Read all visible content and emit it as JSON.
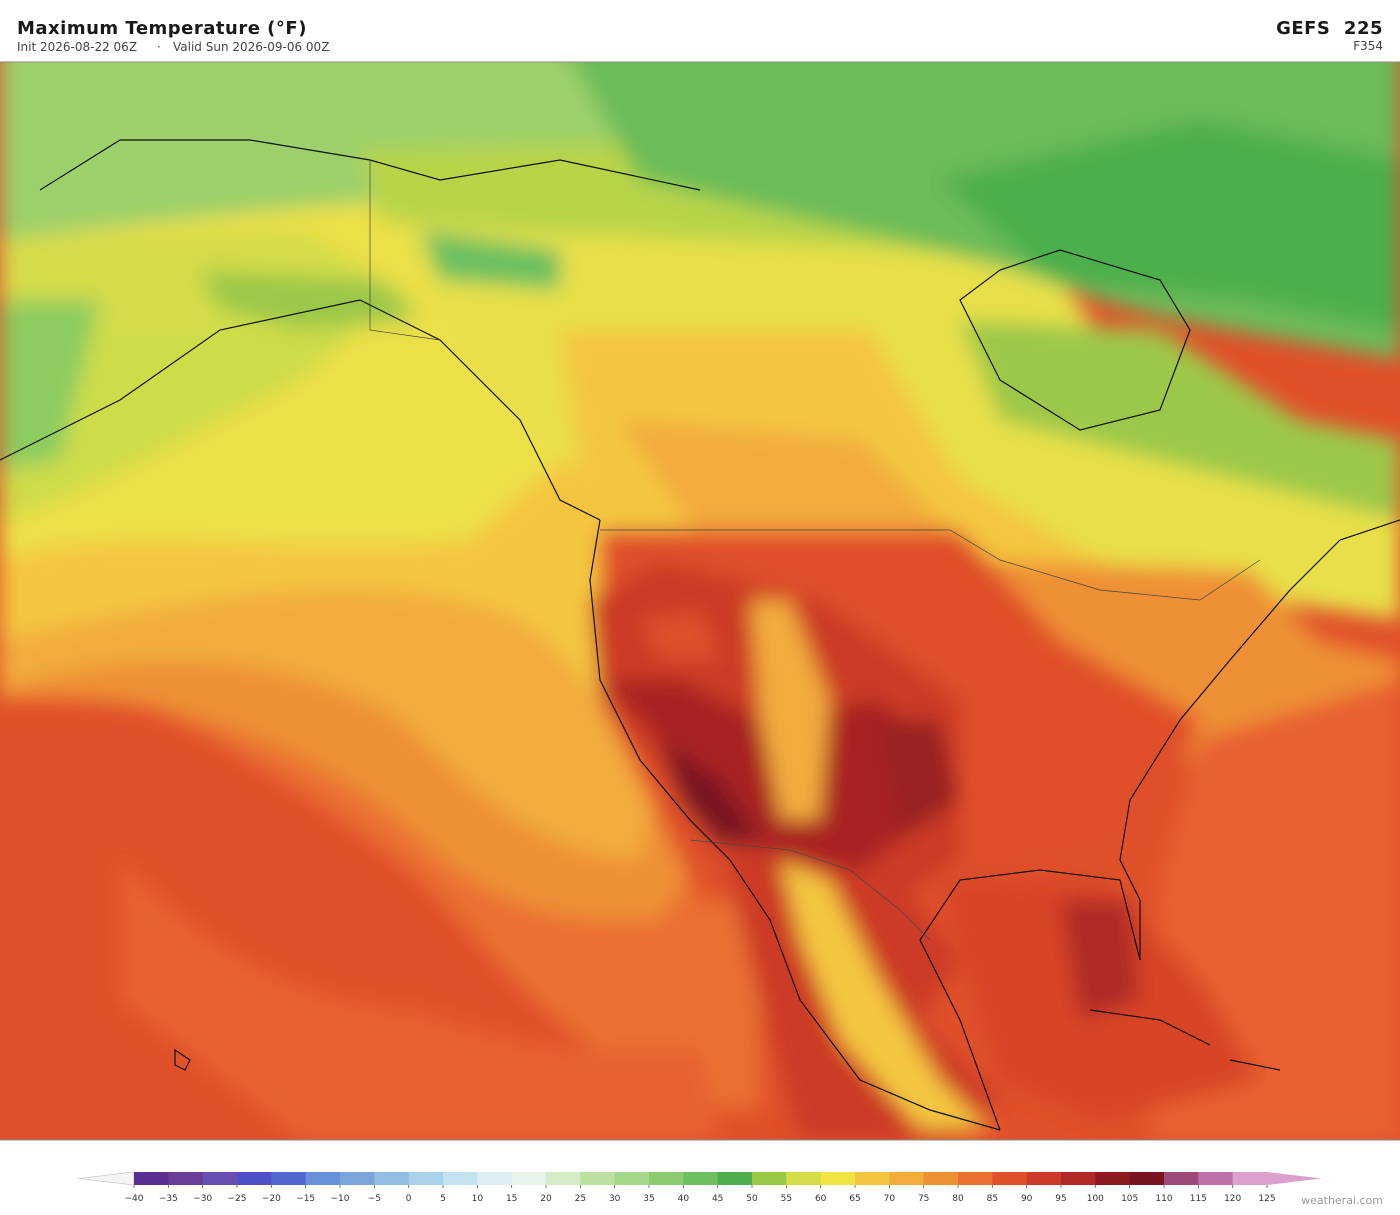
{
  "header": {
    "title": "Maximum Temperature  (°F)",
    "init": "Init 2026-08-22 06Z",
    "separator": "·",
    "valid": "Valid Sun 2026-09-06 00Z",
    "model": "GEFS  225",
    "forecast_hour": "F354"
  },
  "colorbar": {
    "ticks": [
      {
        "value": -40,
        "label": "−40"
      },
      {
        "value": -35,
        "label": "−35"
      },
      {
        "value": -30,
        "label": "−30"
      },
      {
        "value": -25,
        "label": "−25"
      },
      {
        "value": -20,
        "label": "−20"
      },
      {
        "value": -15,
        "label": "−15"
      },
      {
        "value": -10,
        "label": "−10"
      },
      {
        "value": -5,
        "label": "−5"
      },
      0,
      5,
      10,
      15,
      20,
      25,
      30,
      35,
      40,
      45,
      50,
      55,
      60,
      65,
      70,
      75,
      80,
      85,
      90,
      95,
      100,
      105,
      110,
      115,
      120,
      125
    ],
    "colors": [
      "#5a2d91",
      "#6a3d9a",
      "#6a4fb2",
      "#4f50c6",
      "#5068d0",
      "#6690d8",
      "#7aa6dc",
      "#92bde2",
      "#a8d2ea",
      "#c4e2f0",
      "#dceef4",
      "#e6f4ea",
      "#d4ecc8",
      "#bce0a0",
      "#a4d88a",
      "#8ccc70",
      "#6cc060",
      "#4caf4c",
      "#9cc848",
      "#d4dc48",
      "#f0e444",
      "#f4c640",
      "#f2ac3c",
      "#ee9034",
      "#ea7030",
      "#e0502a",
      "#cc3a28",
      "#b02a26",
      "#8c1a20",
      "#781420",
      "#9b4a7a",
      "#c070a8",
      "#dba0cc"
    ],
    "under_color": "#f4f4f4",
    "over_color": "#dba0cc"
  },
  "watermark": "weatherai.com"
}
